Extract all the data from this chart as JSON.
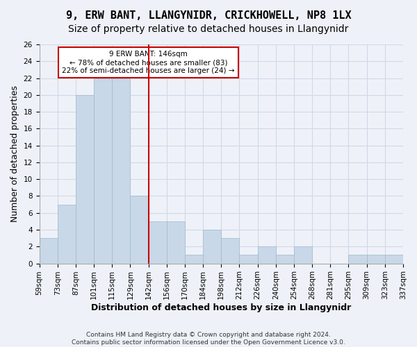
{
  "title1": "9, ERW BANT, LLANGYNIDR, CRICKHOWELL, NP8 1LX",
  "title2": "Size of property relative to detached houses in Llangynidr",
  "xlabel": "Distribution of detached houses by size in Llangynidr",
  "ylabel": "Number of detached properties",
  "categories": [
    "59sqm",
    "73sqm",
    "87sqm",
    "101sqm",
    "115sqm",
    "129sqm",
    "142sqm",
    "156sqm",
    "170sqm",
    "184sqm",
    "198sqm",
    "212sqm",
    "226sqm",
    "240sqm",
    "254sqm",
    "268sqm",
    "281sqm",
    "295sqm",
    "309sqm",
    "323sqm",
    "337sqm"
  ],
  "values": [
    3,
    7,
    20,
    22,
    22,
    8,
    5,
    5,
    1,
    4,
    3,
    1,
    2,
    1,
    2,
    0,
    0,
    1,
    1,
    1
  ],
  "bar_color": "#c8d8e8",
  "bar_edge_color": "#a0b8cc",
  "grid_color": "#d0d8e8",
  "background_color": "#eef2f8",
  "red_line_index": 5.5,
  "annotation_text": "9 ERW BANT: 146sqm\n← 78% of detached houses are smaller (83)\n22% of semi-detached houses are larger (24) →",
  "annotation_box_color": "#ffffff",
  "annotation_box_edge": "#cc0000",
  "ylim": [
    0,
    26
  ],
  "yticks": [
    0,
    2,
    4,
    6,
    8,
    10,
    12,
    14,
    16,
    18,
    20,
    22,
    24,
    26
  ],
  "footer1": "Contains HM Land Registry data © Crown copyright and database right 2024.",
  "footer2": "Contains public sector information licensed under the Open Government Licence v3.0.",
  "title1_fontsize": 11,
  "title2_fontsize": 10,
  "tick_fontsize": 7.5,
  "ylabel_fontsize": 9,
  "xlabel_fontsize": 9
}
